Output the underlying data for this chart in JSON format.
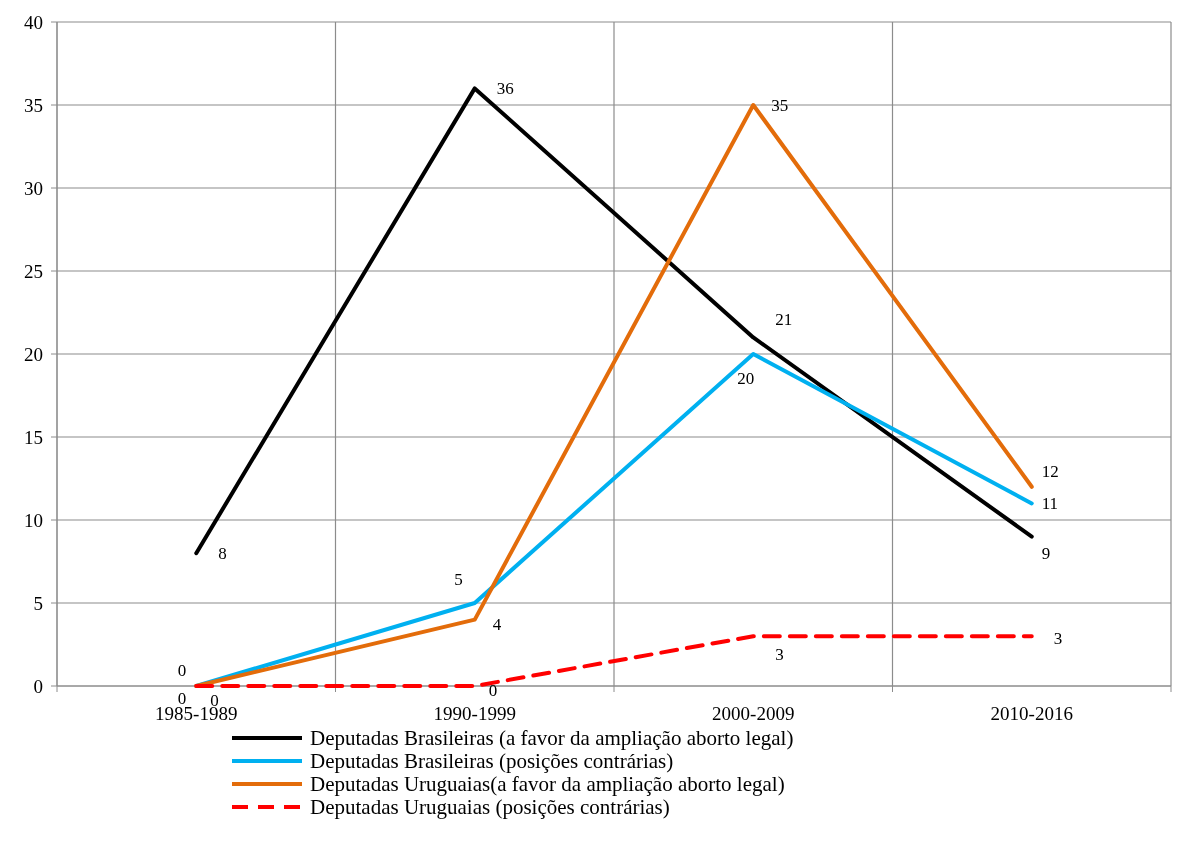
{
  "chart_data": {
    "type": "line",
    "categories": [
      "1985-1989",
      "1990-1999",
      "2000-2009",
      "2010-2016"
    ],
    "ylim": [
      0,
      40
    ],
    "yticks": [
      0,
      5,
      10,
      15,
      20,
      25,
      30,
      35,
      40
    ],
    "grid": true,
    "legend": "bottom",
    "data_labels": true,
    "marker": "none",
    "series": [
      {
        "name": "Deputadas Brasileiras (a favor da ampliação aborto legal)",
        "color": "#000000",
        "values": [
          8,
          36,
          21,
          9
        ],
        "line_style": "solid"
      },
      {
        "name": "Deputadas Brasileiras (posições contrárias)",
        "color": "#00b0f0",
        "values": [
          0,
          5,
          20,
          11
        ],
        "line_style": "solid"
      },
      {
        "name": "Deputadas Uruguaias(a favor da ampliação aborto legal)",
        "color": "#e36c0a",
        "values": [
          0,
          4,
          35,
          12
        ],
        "line_style": "solid"
      },
      {
        "name": "Deputadas Uruguaias (posições contrárias)",
        "color": "#ff0000",
        "values": [
          0,
          0,
          3,
          3
        ],
        "line_style": "dashed"
      }
    ]
  }
}
